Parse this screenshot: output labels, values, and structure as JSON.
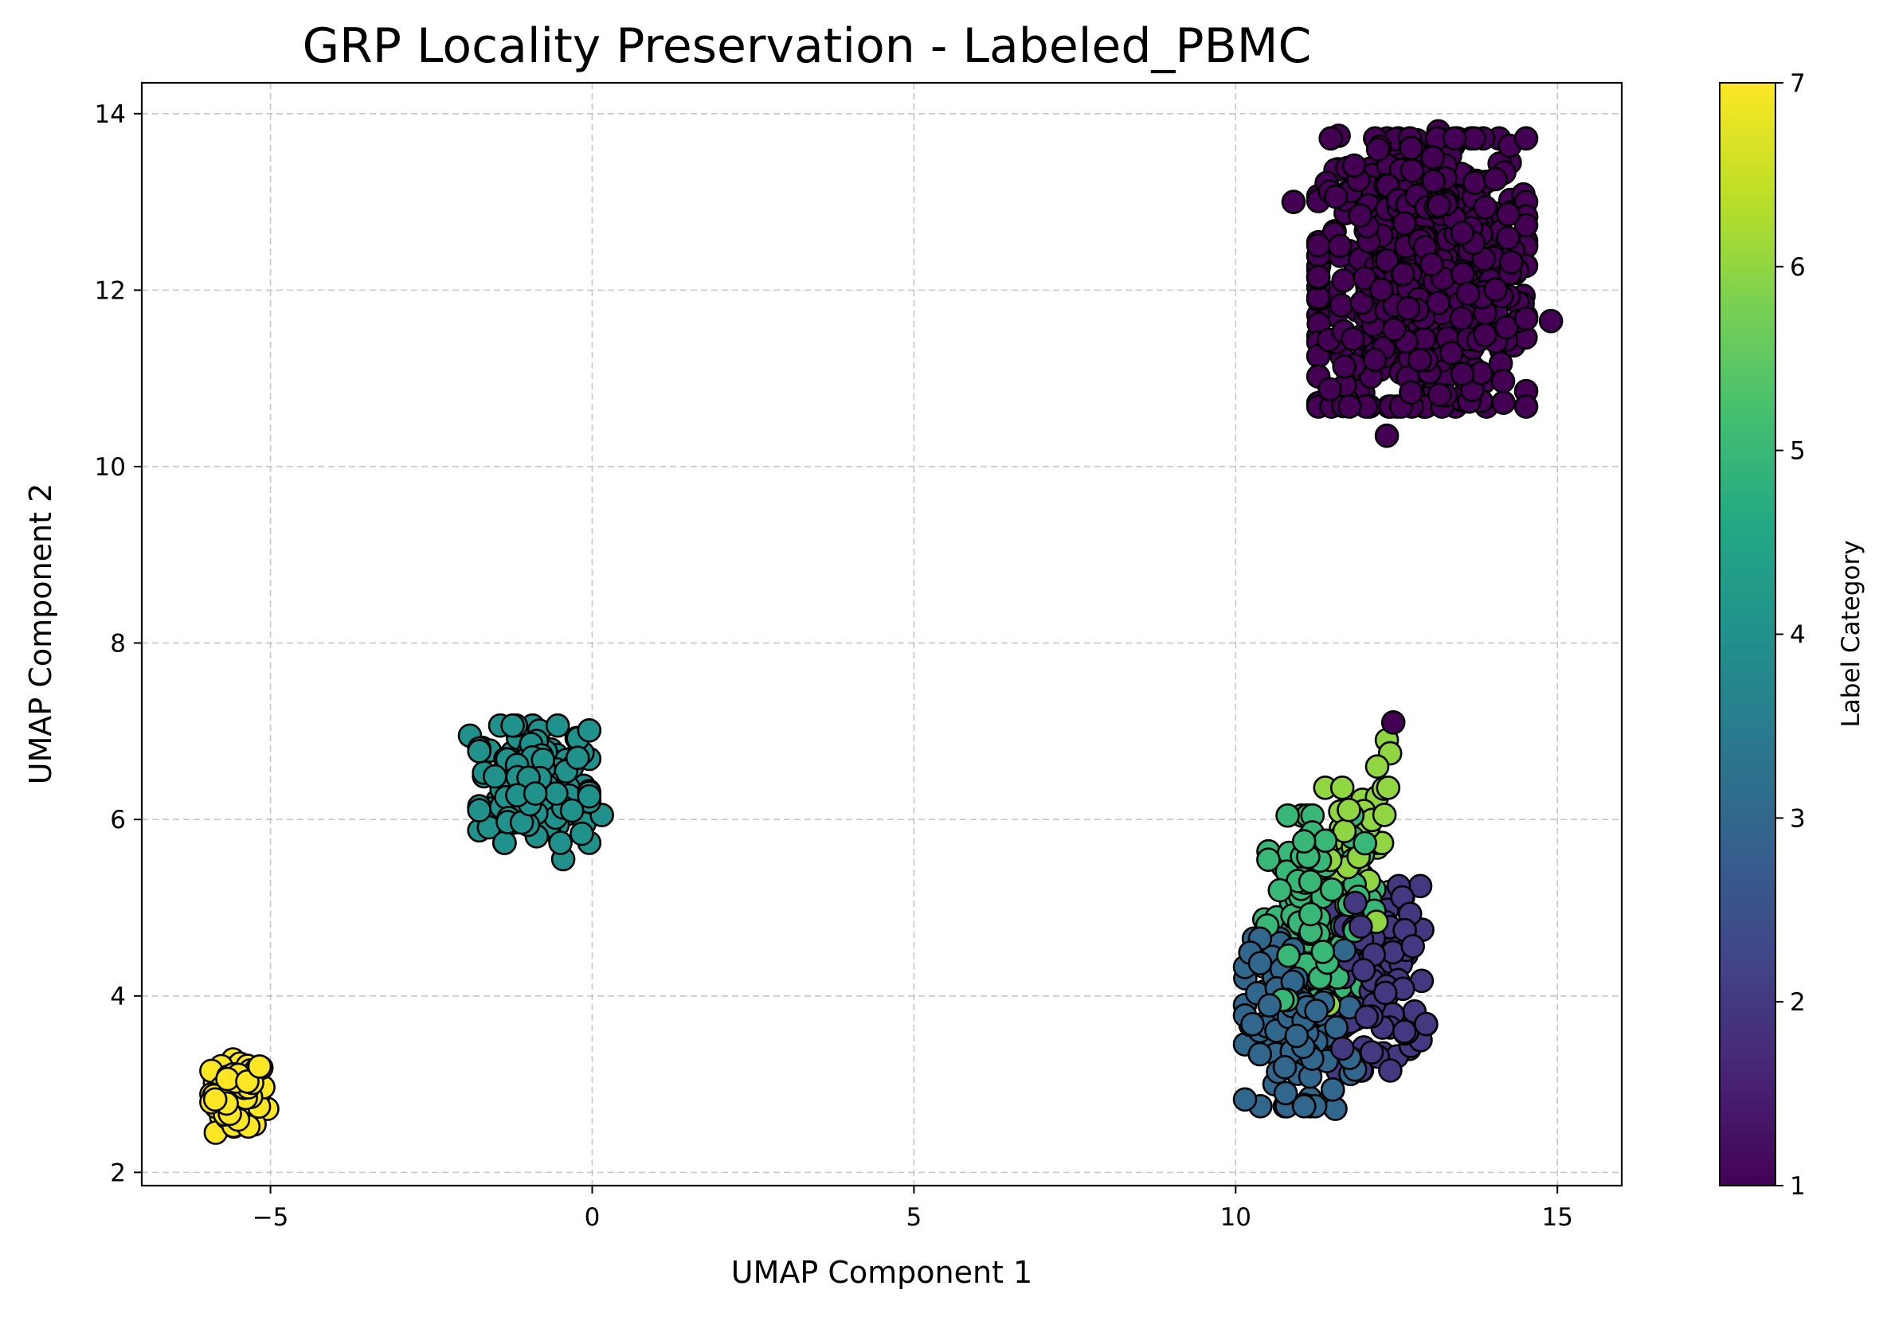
{
  "chart_data": {
    "type": "scatter",
    "title": "GRP Locality Preservation - Labeled_PBMC",
    "xlabel": "UMAP Component 1",
    "ylabel": "UMAP Component 2",
    "xlim": [
      -7.0,
      16.0
    ],
    "ylim": [
      1.85,
      14.35
    ],
    "xticks": [
      -5,
      0,
      5,
      10,
      15
    ],
    "xtick_labels": [
      "−5",
      "0",
      "5",
      "10",
      "15"
    ],
    "yticks": [
      2,
      4,
      6,
      8,
      10,
      12,
      14
    ],
    "ytick_labels": [
      "2",
      "4",
      "6",
      "8",
      "10",
      "12",
      "14"
    ],
    "grid": true,
    "colormap": "viridis",
    "marker_edge_color": "#000000",
    "colorbar": {
      "label": "Label Category",
      "range": [
        1,
        7
      ],
      "ticks": [
        1,
        2,
        3,
        4,
        5,
        6,
        7
      ],
      "tick_labels": [
        "1",
        "2",
        "3",
        "4",
        "5",
        "6",
        "7"
      ]
    },
    "clusters": [
      {
        "label": 7,
        "center": [
          -5.5,
          2.9
        ],
        "spread": [
          0.22,
          0.2
        ],
        "count": 70
      },
      {
        "label": 4,
        "center": [
          -0.9,
          6.4
        ],
        "spread": [
          0.45,
          0.35
        ],
        "count": 170
      },
      {
        "label": 1,
        "center": [
          12.9,
          12.2
        ],
        "spread": [
          0.85,
          0.8
        ],
        "count": 600
      },
      {
        "label": 2,
        "center": [
          12.2,
          4.2
        ],
        "spread": [
          0.4,
          0.55
        ],
        "count": 120
      },
      {
        "label": 3,
        "center": [
          11.0,
          3.7
        ],
        "spread": [
          0.45,
          0.5
        ],
        "count": 130
      },
      {
        "label": 5,
        "center": [
          11.3,
          5.0
        ],
        "spread": [
          0.45,
          0.55
        ],
        "count": 150
      },
      {
        "label": 6,
        "center": [
          11.8,
          5.6
        ],
        "spread": [
          0.35,
          0.4
        ],
        "count": 50
      }
    ],
    "points": [
      {
        "x": 12.35,
        "y": 10.35,
        "label": 1
      },
      {
        "x": 12.45,
        "y": 7.1,
        "label": 1
      },
      {
        "x": 12.35,
        "y": 6.9,
        "label": 6
      },
      {
        "x": 12.4,
        "y": 6.75,
        "label": 6
      },
      {
        "x": 12.2,
        "y": 6.6,
        "label": 6
      },
      {
        "x": 12.3,
        "y": 6.35,
        "label": 6
      },
      {
        "x": 11.45,
        "y": 3.9,
        "label": 6
      },
      {
        "x": 11.55,
        "y": 3.8,
        "label": 6
      },
      {
        "x": 11.55,
        "y": 2.72,
        "label": 3
      },
      {
        "x": 10.15,
        "y": 4.2,
        "label": 3
      },
      {
        "x": 12.9,
        "y": 4.75,
        "label": 2
      },
      {
        "x": 12.7,
        "y": 3.4,
        "label": 2
      },
      {
        "x": -5.85,
        "y": 2.45,
        "label": 7
      },
      {
        "x": -5.05,
        "y": 2.72,
        "label": 7
      },
      {
        "x": 0.15,
        "y": 6.05,
        "label": 4
      },
      {
        "x": -1.9,
        "y": 6.95,
        "label": 4
      },
      {
        "x": -0.45,
        "y": 5.55,
        "label": 4
      },
      {
        "x": 14.9,
        "y": 11.65,
        "label": 1
      },
      {
        "x": 13.15,
        "y": 13.8,
        "label": 1
      },
      {
        "x": 11.6,
        "y": 13.75,
        "label": 1
      },
      {
        "x": 10.9,
        "y": 13.0,
        "label": 1
      }
    ]
  }
}
